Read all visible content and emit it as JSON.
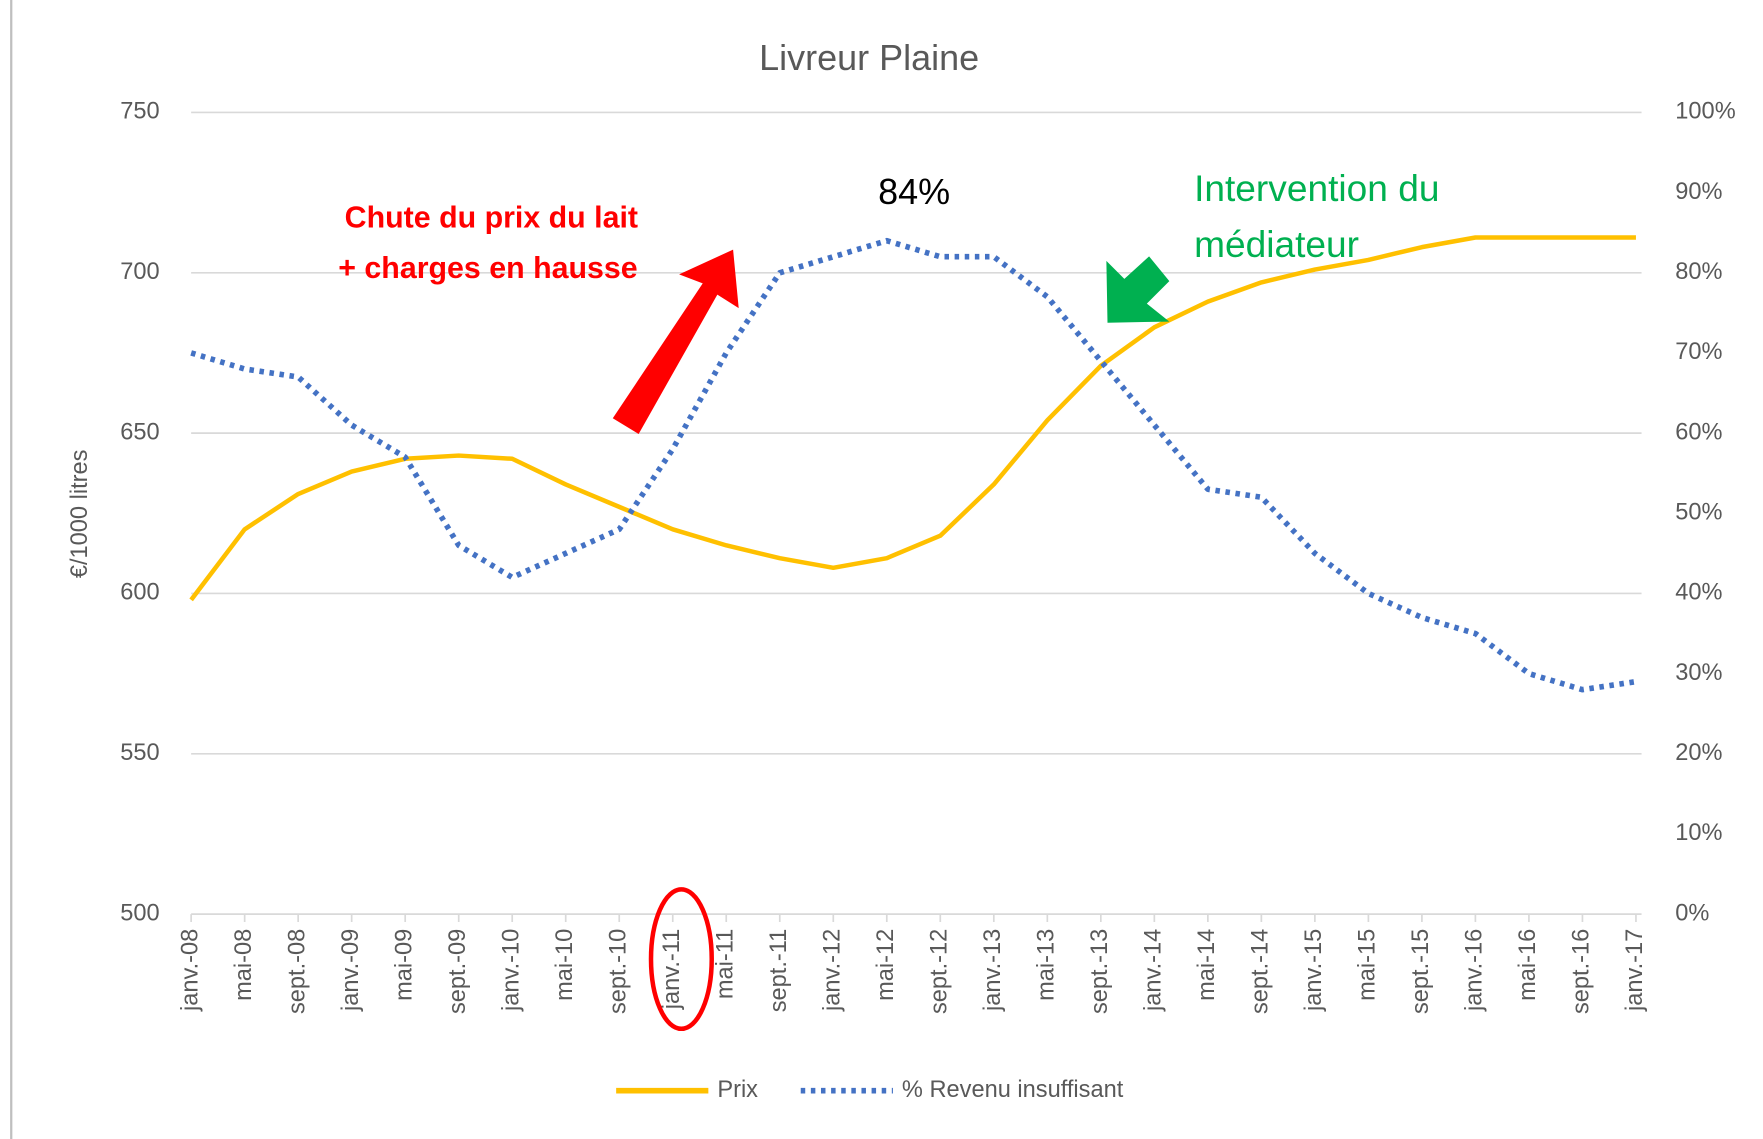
{
  "chart_data": {
    "type": "line",
    "title": "Livreur Plaine",
    "y_label": "€/1000 litres",
    "categories": [
      "janv.-08",
      "mai-08",
      "sept.-08",
      "janv.-09",
      "mai-09",
      "sept.-09",
      "janv.-10",
      "mai-10",
      "sept.-10",
      "janv.-11",
      "mai-11",
      "sept.-11",
      "janv.-12",
      "mai-12",
      "sept.-12",
      "janv.-13",
      "mai-13",
      "sept.-13",
      "janv.-14",
      "mai-14",
      "sept.-14",
      "janv.-15",
      "mai-15",
      "sept.-15",
      "janv.-16",
      "mai-16",
      "sept.-16",
      "janv.-17"
    ],
    "series": [
      {
        "name": "Prix",
        "color": "#ffc000",
        "values": [
          598,
          620,
          631,
          638,
          642,
          643,
          642,
          634,
          627,
          620,
          615,
          611,
          608,
          611,
          618,
          634,
          654,
          671,
          683,
          691,
          697,
          701,
          704,
          708,
          711,
          711,
          711,
          711
        ]
      },
      {
        "name": "% Revenu insuffisant",
        "color": "#4472c4",
        "axis": "y2",
        "values": [
          70,
          68,
          67,
          61,
          57,
          46,
          42,
          45,
          48,
          58,
          70,
          80,
          82,
          84,
          82,
          82,
          77,
          69,
          61,
          53,
          52,
          45,
          40,
          37,
          35,
          30,
          28,
          29
        ]
      }
    ],
    "ylim": [
      500,
      750
    ],
    "yticks": [
      500,
      550,
      600,
      650,
      700,
      750
    ],
    "y2lim": [
      0,
      100
    ],
    "y2ticks": [
      {
        "value": 0,
        "label": "0%"
      },
      {
        "value": 10,
        "label": "10%"
      },
      {
        "value": 20,
        "label": "20%"
      },
      {
        "value": 30,
        "label": "30%"
      },
      {
        "value": 40,
        "label": "40%"
      },
      {
        "value": 50,
        "label": "50%"
      },
      {
        "value": 60,
        "label": "60%"
      },
      {
        "value": 70,
        "label": "70%"
      },
      {
        "value": 80,
        "label": "80%"
      },
      {
        "value": 90,
        "label": "90%"
      },
      {
        "value": 100,
        "label": "100%"
      }
    ],
    "grid": true,
    "legend": "bottom",
    "annotations": [
      "84%",
      "Chute du prix du lait",
      "+ charges en hausse",
      "Intervention du",
      "médiateur"
    ]
  }
}
